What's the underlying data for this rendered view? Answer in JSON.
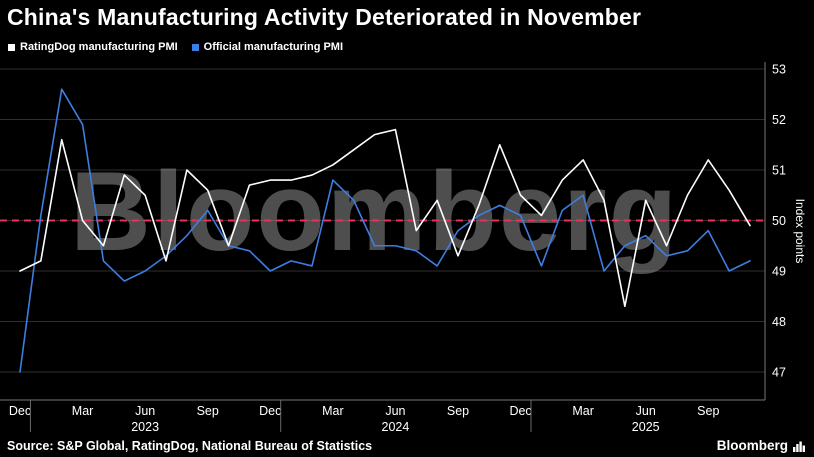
{
  "header": {
    "title": "China's Manufacturing Activity Deteriorated in November"
  },
  "legend": [
    {
      "label": "RatingDog manufacturing PMI",
      "color": "#ffffff"
    },
    {
      "label": "Official manufacturing PMI",
      "color": "#3d7ee0"
    }
  ],
  "watermark": "Bloomberg",
  "footer": {
    "source": "Source: S&P Global, RatingDog, National Bureau of Statistics",
    "brand": "Bloomberg"
  },
  "chart_data": {
    "type": "line",
    "title": "China's Manufacturing Activity Deteriorated in November",
    "xlabel": "",
    "ylabel": "Index points",
    "ylim": [
      46.4,
      53.2
    ],
    "yticks": [
      47,
      48,
      49,
      50,
      51,
      52,
      53
    ],
    "grid": true,
    "legend_position": "top-left",
    "reference_line": {
      "value": 50,
      "color": "#e8305a",
      "style": "dashed"
    },
    "x": [
      "Dec 2022",
      "Jan 2023",
      "Feb 2023",
      "Mar 2023",
      "Apr 2023",
      "May 2023",
      "Jun 2023",
      "Jul 2023",
      "Aug 2023",
      "Sep 2023",
      "Oct 2023",
      "Nov 2023",
      "Dec 2023",
      "Jan 2024",
      "Feb 2024",
      "Mar 2024",
      "Apr 2024",
      "May 2024",
      "Jun 2024",
      "Jul 2024",
      "Aug 2024",
      "Sep 2024",
      "Oct 2024",
      "Nov 2024",
      "Dec 2024",
      "Jan 2025",
      "Feb 2025",
      "Mar 2025",
      "Apr 2025",
      "May 2025",
      "Jun 2025",
      "Jul 2025",
      "Aug 2025",
      "Sep 2025",
      "Oct 2025",
      "Nov 2025"
    ],
    "x_tick_indices": [
      0,
      3,
      6,
      9,
      12,
      15,
      18,
      21,
      24,
      27,
      30,
      33
    ],
    "x_tick_labels": [
      "Dec",
      "Mar",
      "Jun",
      "Sep",
      "Dec",
      "Mar",
      "Jun",
      "Sep",
      "Dec",
      "Mar",
      "Jun",
      "Sep"
    ],
    "year_labels": [
      {
        "label": "2023",
        "index": 6
      },
      {
        "label": "2024",
        "index": 18
      },
      {
        "label": "2025",
        "index": 30
      }
    ],
    "year_separator_positions": [
      0.5,
      12.5,
      24.5
    ],
    "series": [
      {
        "name": "RatingDog manufacturing PMI",
        "color": "#ffffff",
        "values": [
          49.0,
          49.2,
          51.6,
          50.0,
          49.5,
          50.9,
          50.5,
          49.2,
          51.0,
          50.6,
          49.5,
          50.7,
          50.8,
          50.8,
          50.9,
          51.1,
          51.4,
          51.7,
          51.8,
          49.8,
          50.4,
          49.3,
          50.3,
          51.5,
          50.5,
          50.1,
          50.8,
          51.2,
          50.4,
          48.3,
          50.4,
          49.5,
          50.5,
          51.2,
          50.6,
          49.9
        ]
      },
      {
        "name": "Official manufacturing PMI",
        "color": "#3d7ee0",
        "values": [
          47.0,
          50.1,
          52.6,
          51.9,
          49.2,
          48.8,
          49.0,
          49.3,
          49.7,
          50.2,
          49.5,
          49.4,
          49.0,
          49.2,
          49.1,
          50.8,
          50.4,
          49.5,
          49.5,
          49.4,
          49.1,
          49.8,
          50.1,
          50.3,
          50.1,
          49.1,
          50.2,
          50.5,
          49.0,
          49.5,
          49.7,
          49.3,
          49.4,
          49.8,
          49.0,
          49.2
        ]
      }
    ]
  }
}
